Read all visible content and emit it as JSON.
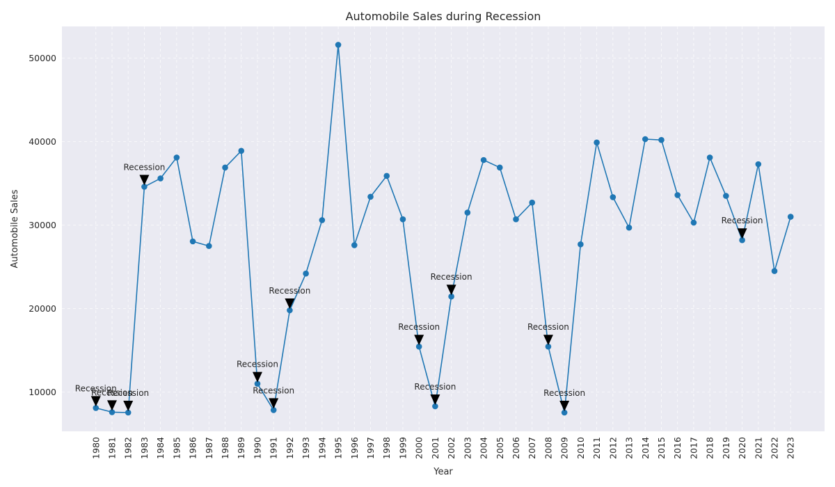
{
  "chart_data": {
    "type": "line",
    "title": "Automobile Sales during Recession",
    "xlabel": "Year",
    "ylabel": "Automobile Sales",
    "x": [
      1980,
      1981,
      1982,
      1983,
      1984,
      1985,
      1986,
      1987,
      1988,
      1989,
      1990,
      1991,
      1992,
      1993,
      1994,
      1995,
      1996,
      1997,
      1998,
      1999,
      2000,
      2001,
      2002,
      2003,
      2004,
      2005,
      2006,
      2007,
      2008,
      2009,
      2010,
      2011,
      2012,
      2013,
      2014,
      2015,
      2016,
      2017,
      2018,
      2019,
      2020,
      2021,
      2022,
      2023
    ],
    "series": [
      {
        "name": "",
        "values": [
          8100,
          7600,
          7550,
          34600,
          35600,
          38100,
          28050,
          27500,
          36900,
          38900,
          11000,
          7850,
          19800,
          24200,
          30600,
          51600,
          27600,
          33400,
          35900,
          30700,
          15450,
          8300,
          21450,
          31500,
          37800,
          36900,
          30700,
          32700,
          15450,
          7550,
          27700,
          39900,
          33350,
          29700,
          40300,
          40200,
          33600,
          30300,
          38100,
          33500,
          28200,
          37300,
          24500,
          31000
        ],
        "color": "#1f77b4"
      }
    ],
    "ylim": [
      5300,
      53800
    ],
    "xlim": [
      1977.9,
      2025.1
    ],
    "yticks": [
      10000,
      20000,
      30000,
      40000,
      50000
    ],
    "grid": true,
    "legend": "none",
    "background_color": "#eaeaf2",
    "annotations": [
      {
        "x": 1980,
        "y": 8100,
        "text": "Recession"
      },
      {
        "x": 1981,
        "y": 7600,
        "text": "Recession"
      },
      {
        "x": 1982,
        "y": 7550,
        "text": "Recession"
      },
      {
        "x": 1983,
        "y": 34600,
        "text": "Recession"
      },
      {
        "x": 1990,
        "y": 11000,
        "text": "Recession"
      },
      {
        "x": 1991,
        "y": 7850,
        "text": "Recession"
      },
      {
        "x": 1992,
        "y": 19800,
        "text": "Recession"
      },
      {
        "x": 2000,
        "y": 15450,
        "text": "Recession"
      },
      {
        "x": 2001,
        "y": 8300,
        "text": "Recession"
      },
      {
        "x": 2002,
        "y": 21450,
        "text": "Recession"
      },
      {
        "x": 2008,
        "y": 15450,
        "text": "Recession"
      },
      {
        "x": 2009,
        "y": 7550,
        "text": "Recession"
      },
      {
        "x": 2020,
        "y": 28200,
        "text": "Recession"
      }
    ]
  }
}
